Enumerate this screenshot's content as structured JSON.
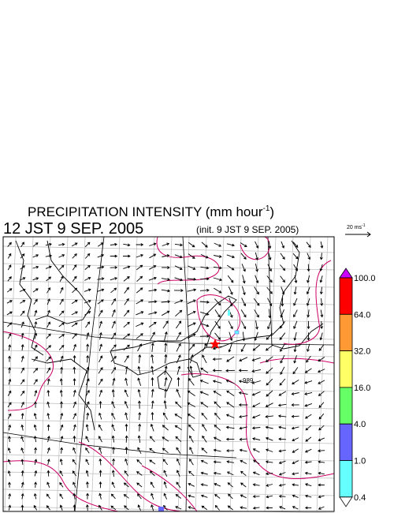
{
  "header": {
    "title": "PRECIPITATION INTENSITY (mm hour",
    "title_superscript": "-1",
    "title_end": ")",
    "valid_time": "12 JST 9 SEP. 2005",
    "init_time": "(init. 9 JST 9 SEP. 2005)"
  },
  "vector_scale": {
    "label": "20 ms",
    "superscript": "-1"
  },
  "map": {
    "isobar_label": "989"
  },
  "colorbar": {
    "labels": [
      "100.0",
      "64.0",
      "32.0",
      "16.0",
      "4.0",
      "1.0",
      "0.4"
    ],
    "colors": [
      "#cc00ff",
      "#ff0000",
      "#ff9933",
      "#ffff66",
      "#66ff66",
      "#6666ff",
      "#66ffff",
      "#ffffff"
    ]
  }
}
